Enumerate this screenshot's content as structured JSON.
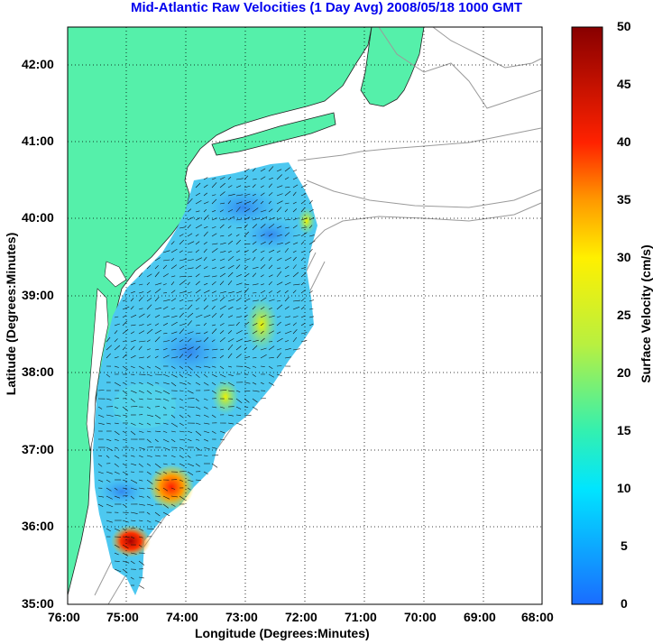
{
  "title": "Mid-Atlantic Raw Velocities (1 Day Avg) 2008/05/18 1000 GMT",
  "map": {
    "xlabel": "Longitude (Degrees:Minutes)",
    "ylabel": "Latitude (Degrees:Minutes)",
    "lon_ticks": [
      "76:00",
      "75:00",
      "74:00",
      "73:00",
      "72:00",
      "71:00",
      "70:00",
      "69:00",
      "68:00"
    ],
    "lat_ticks": [
      "35:00",
      "36:00",
      "37:00",
      "38:00",
      "39:00",
      "40:00",
      "41:00",
      "42:00"
    ],
    "lon_range": [
      -76,
      -68
    ],
    "lat_range": [
      35,
      42.5
    ],
    "land_color": "#55f0aa",
    "grid": "dotted"
  },
  "colorbar": {
    "label": "Surface Velocity (cm/s)",
    "ticks": [
      "0",
      "5",
      "10",
      "15",
      "20",
      "25",
      "30",
      "35",
      "40",
      "45",
      "50"
    ],
    "range": [
      0,
      50
    ]
  }
}
